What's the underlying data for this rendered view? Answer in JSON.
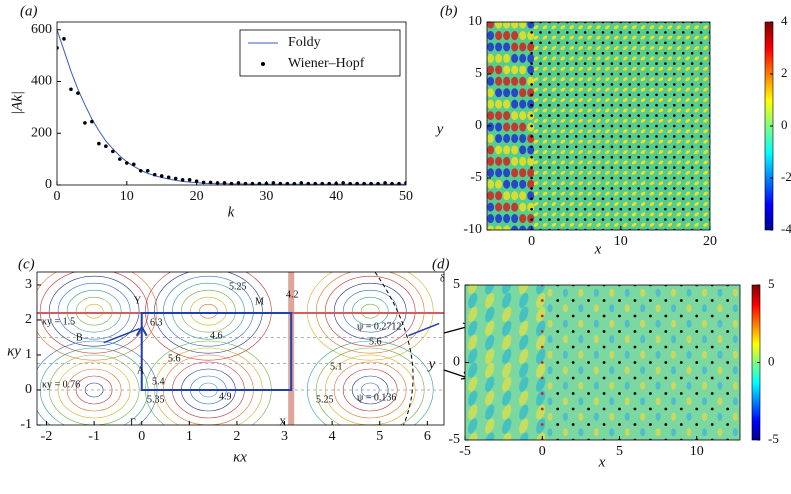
{
  "chart_data": [
    {
      "type": "line",
      "label": "(a)",
      "xlabel": "k",
      "ylabel": "|Ak|",
      "x": [
        0,
        1,
        2,
        3,
        4,
        5,
        6,
        7,
        8,
        9,
        10,
        11,
        12,
        13,
        14,
        15,
        16,
        17,
        18,
        19,
        20,
        21,
        22,
        23,
        24,
        25,
        26,
        27,
        28,
        29,
        30,
        31,
        32,
        33,
        34,
        35,
        36,
        37,
        38,
        39,
        40,
        41,
        42,
        43,
        44,
        45,
        46,
        47,
        48,
        49,
        50
      ],
      "xlim": [
        0,
        50
      ],
      "xticks": [
        0,
        10,
        20,
        30,
        40,
        50
      ],
      "ylim": [
        0,
        630
      ],
      "yticks": [
        0,
        200,
        400,
        600
      ],
      "legend": "upper right",
      "series": [
        {
          "name": "Foldy",
          "color": "#3b5bbf",
          "marker": "none",
          "values": [
            600,
            520,
            440,
            370,
            310,
            255,
            210,
            170,
            140,
            112,
            90,
            72,
            57,
            45,
            36,
            29,
            23,
            18,
            14,
            11,
            9,
            7,
            6,
            5,
            5,
            4,
            4,
            4,
            3,
            3,
            3,
            3,
            3,
            3,
            3,
            3,
            3,
            3,
            3,
            3,
            3,
            3,
            3,
            3,
            3,
            3,
            3,
            3,
            3,
            3,
            3
          ]
        },
        {
          "name": "Wiener–Hopf",
          "color": "#000000",
          "marker": "dot",
          "values": [
            530,
            565,
            370,
            355,
            240,
            245,
            160,
            150,
            130,
            100,
            85,
            80,
            55,
            55,
            40,
            35,
            30,
            25,
            20,
            20,
            15,
            10,
            10,
            8,
            8,
            5,
            8,
            5,
            5,
            5,
            5,
            8,
            5,
            5,
            5,
            8,
            5,
            5,
            5,
            5,
            5,
            8,
            5,
            5,
            5,
            5,
            5,
            8,
            5,
            5,
            8
          ]
        }
      ]
    },
    {
      "type": "heatmap",
      "label": "(b)",
      "xlabel": "x",
      "ylabel": "y",
      "xlim": [
        -5,
        20
      ],
      "xticks": [
        0,
        10,
        20
      ],
      "ylim": [
        -10,
        10
      ],
      "yticks": [
        -10,
        -5,
        0,
        5,
        10
      ],
      "colorbar": {
        "lim": [
          -4,
          4
        ],
        "ticks": [
          -4,
          -2,
          0,
          2,
          4
        ]
      }
    },
    {
      "type": "contour",
      "label": "(c)",
      "xlabel": "κx",
      "ylabel": "κy",
      "xlim": [
        -2.2,
        6.35
      ],
      "xticks": [
        -2,
        -1,
        0,
        1,
        2,
        3,
        4,
        5,
        6
      ],
      "ylim": [
        -1,
        3.37
      ],
      "yticks": [
        -1,
        0,
        1,
        2,
        3
      ],
      "annotations": [
        "5.25",
        "Y",
        "M",
        "4.2",
        "6.3",
        "κy = 1.5",
        "B",
        "ψ = 0.2712",
        "5.6",
        "4.6",
        "5.6",
        "A",
        "5.4",
        "κy = 0.76",
        "5.1",
        "5.35",
        "4.9",
        "5.25",
        "ψ = 0.136",
        "Γ",
        "X",
        "δ"
      ]
    },
    {
      "type": "heatmap",
      "label": "(d)",
      "xlabel": "x",
      "ylabel": "y",
      "xlim": [
        -5,
        12.8
      ],
      "xticks": [
        -5,
        0,
        5,
        10
      ],
      "ylim": [
        -5,
        5
      ],
      "yticks": [
        -5,
        0,
        5
      ],
      "colorbar": {
        "lim": [
          -5,
          5
        ],
        "ticks": [
          -5,
          0,
          5
        ]
      }
    }
  ]
}
